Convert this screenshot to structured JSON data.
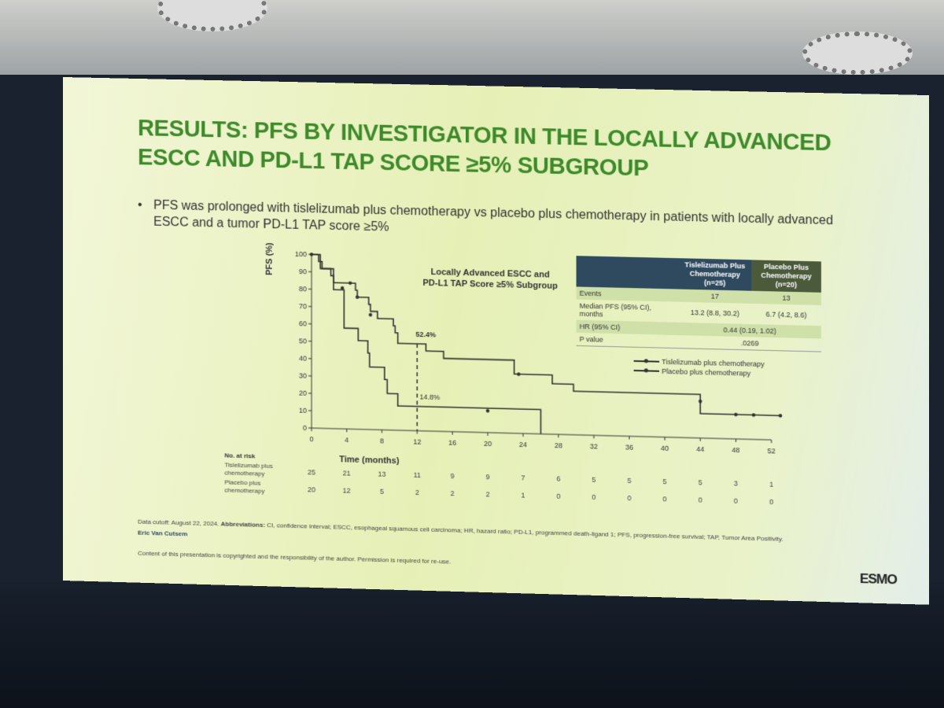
{
  "slide": {
    "title_line1": "RESULTS: PFS BY INVESTIGATOR IN THE LOCALLY ADVANCED",
    "title_line2": "ESCC AND PD-L1 TAP SCORE ≥5% SUBGROUP",
    "bullet": "PFS was prolonged with tislelizumab plus chemotherapy vs placebo plus chemotherapy in patients with locally advanced ESCC and a tumor PD-L1 TAP score ≥5%",
    "footnote": "Data cutoff: August 22, 2024.",
    "abbrev_label": "Abbreviations:",
    "abbrev_text": "CI, confidence interval; ESCC, esophageal squamous cell carcinoma; HR, hazard ratio; PD-L1, programmed death-ligand 1; PFS, progression-free survival; TAP, Tumor Area Positivity.",
    "presenter": "Eric Van Cutsem",
    "copyright": "Content of this presentation is copyrighted and the responsibility of the author. Permission is required for re-use.",
    "logo": "ESMO"
  },
  "summary_table": {
    "headers": [
      "",
      "Tislelizumab Plus Chemotherapy (n=25)",
      "Placebo Plus Chemotherapy (n=20)"
    ],
    "rows": [
      {
        "label": "Events",
        "a": "17",
        "b": "13"
      },
      {
        "label": "Median PFS (95% CI), months",
        "a": "13.2 (8.8, 30.2)",
        "b": "6.7 (4.2, 8.6)"
      },
      {
        "label": "HR (95% CI)",
        "ab": "0.44 (0.19, 1.02)"
      },
      {
        "label": "P value",
        "ab": ".0269"
      }
    ],
    "header_colors": [
      "#2f4a5e",
      "#4a5a3a"
    ]
  },
  "chart_data": {
    "type": "line",
    "subtitle": "Locally Advanced ESCC and PD-L1 TAP Score ≥5% Subgroup",
    "xlabel": "Time (months)",
    "ylabel": "PFS (%)",
    "xlim": [
      0,
      52
    ],
    "ylim": [
      0,
      100
    ],
    "xticks": [
      0,
      4,
      8,
      12,
      16,
      20,
      24,
      28,
      32,
      36,
      40,
      44,
      48,
      52
    ],
    "yticks": [
      0,
      10,
      20,
      30,
      40,
      50,
      60,
      70,
      80,
      90,
      100
    ],
    "annotations": [
      {
        "x": 12,
        "text": "52.4%"
      },
      {
        "x": 12,
        "text": "14.8%"
      }
    ],
    "series": [
      {
        "name": "Tislelizumab plus chemotherapy",
        "color": "#333333",
        "steps": [
          [
            0,
            100
          ],
          [
            0.8,
            96
          ],
          [
            1.2,
            92
          ],
          [
            2.2,
            88
          ],
          [
            2.5,
            84
          ],
          [
            5,
            80
          ],
          [
            5.2,
            76
          ],
          [
            6.5,
            72
          ],
          [
            6.7,
            68
          ],
          [
            7.5,
            64
          ],
          [
            9.3,
            60
          ],
          [
            9.5,
            56
          ],
          [
            9.8,
            50
          ],
          [
            13,
            46
          ],
          [
            15,
            42
          ],
          [
            23,
            34
          ],
          [
            27.3,
            29
          ],
          [
            29.7,
            25
          ],
          [
            44,
            14
          ],
          [
            53,
            14
          ]
        ],
        "censored": [
          [
            4.4,
            84
          ],
          [
            5.2,
            76
          ],
          [
            6.7,
            66
          ],
          [
            23.5,
            34
          ],
          [
            44,
            21
          ],
          [
            48,
            14
          ],
          [
            50,
            14
          ],
          [
            53,
            14
          ]
        ]
      },
      {
        "name": "Placebo plus chemotherapy",
        "color": "#333333",
        "steps": [
          [
            0,
            100
          ],
          [
            1,
            92
          ],
          [
            2.5,
            80
          ],
          [
            3.7,
            58
          ],
          [
            5.3,
            51
          ],
          [
            6.4,
            44
          ],
          [
            6.6,
            36
          ],
          [
            8.3,
            29
          ],
          [
            8.6,
            21
          ],
          [
            9.8,
            14
          ],
          [
            26,
            11
          ],
          [
            26,
            0
          ]
        ],
        "censored": [
          [
            0,
            100
          ],
          [
            3.5,
            81
          ],
          [
            20,
            12.5
          ]
        ]
      }
    ],
    "at_risk": {
      "label": "No. at risk",
      "rows": [
        {
          "name": "Tislelizumab plus chemotherapy",
          "values": [
            25,
            21,
            13,
            11,
            9,
            9,
            7,
            6,
            5,
            5,
            5,
            5,
            3,
            1
          ]
        },
        {
          "name": "Placebo plus chemotherapy",
          "values": [
            20,
            12,
            5,
            2,
            2,
            2,
            1,
            0,
            0,
            0,
            0,
            0,
            0,
            0
          ]
        }
      ]
    }
  }
}
